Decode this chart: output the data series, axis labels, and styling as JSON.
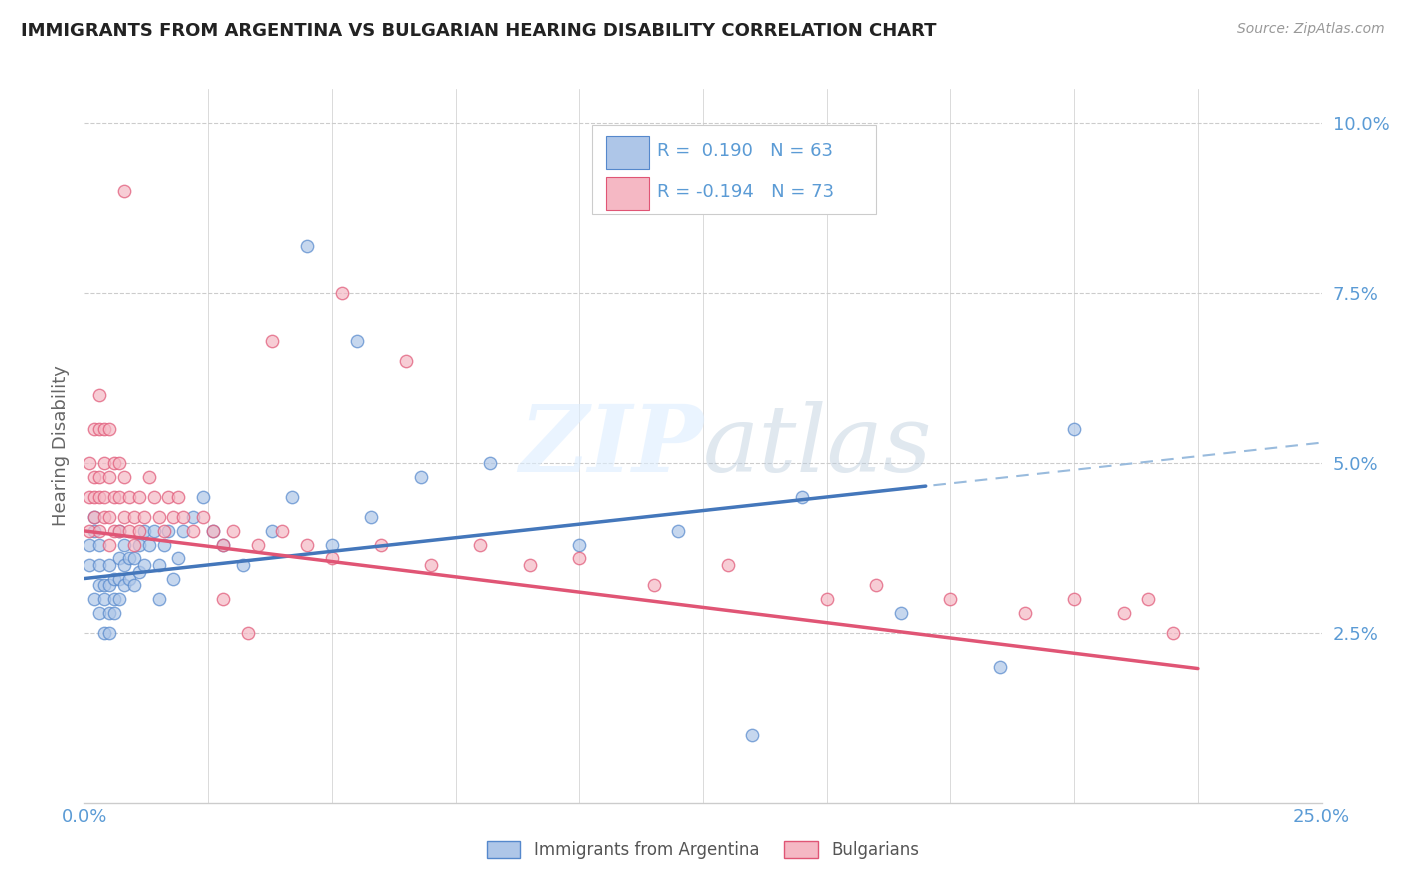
{
  "title": "IMMIGRANTS FROM ARGENTINA VS BULGARIAN HEARING DISABILITY CORRELATION CHART",
  "source": "Source: ZipAtlas.com",
  "ylabel": "Hearing Disability",
  "xlim": [
    0.0,
    0.25
  ],
  "ylim": [
    0.0,
    0.105
  ],
  "argentina_color": "#aec6e8",
  "argentina_edge": "#5588cc",
  "bulgaria_color": "#f5b8c4",
  "bulgaria_edge": "#e05575",
  "argentina_line_color": "#4477bb",
  "argentina_line_dash_color": "#99bbdd",
  "bulgaria_line_color": "#e05575",
  "argentina_R": 0.19,
  "argentina_N": 63,
  "bulgaria_R": -0.194,
  "bulgaria_N": 73,
  "background_color": "#ffffff",
  "grid_color": "#cccccc",
  "argentina_x": [
    0.001,
    0.001,
    0.002,
    0.002,
    0.002,
    0.003,
    0.003,
    0.003,
    0.003,
    0.004,
    0.004,
    0.004,
    0.005,
    0.005,
    0.005,
    0.005,
    0.006,
    0.006,
    0.006,
    0.007,
    0.007,
    0.007,
    0.007,
    0.008,
    0.008,
    0.008,
    0.009,
    0.009,
    0.01,
    0.01,
    0.011,
    0.011,
    0.012,
    0.012,
    0.013,
    0.014,
    0.015,
    0.015,
    0.016,
    0.017,
    0.018,
    0.019,
    0.02,
    0.022,
    0.024,
    0.026,
    0.028,
    0.032,
    0.038,
    0.042,
    0.05,
    0.058,
    0.068,
    0.082,
    0.1,
    0.12,
    0.145,
    0.165,
    0.185,
    0.2,
    0.045,
    0.055,
    0.135
  ],
  "argentina_y": [
    0.035,
    0.038,
    0.04,
    0.042,
    0.03,
    0.028,
    0.032,
    0.035,
    0.038,
    0.025,
    0.03,
    0.032,
    0.025,
    0.028,
    0.032,
    0.035,
    0.028,
    0.03,
    0.033,
    0.03,
    0.033,
    0.036,
    0.04,
    0.032,
    0.035,
    0.038,
    0.033,
    0.036,
    0.032,
    0.036,
    0.034,
    0.038,
    0.035,
    0.04,
    0.038,
    0.04,
    0.03,
    0.035,
    0.038,
    0.04,
    0.033,
    0.036,
    0.04,
    0.042,
    0.045,
    0.04,
    0.038,
    0.035,
    0.04,
    0.045,
    0.038,
    0.042,
    0.048,
    0.05,
    0.038,
    0.04,
    0.045,
    0.028,
    0.02,
    0.055,
    0.082,
    0.068,
    0.01
  ],
  "bulgaria_x": [
    0.001,
    0.001,
    0.001,
    0.002,
    0.002,
    0.002,
    0.002,
    0.003,
    0.003,
    0.003,
    0.003,
    0.003,
    0.004,
    0.004,
    0.004,
    0.004,
    0.005,
    0.005,
    0.005,
    0.005,
    0.006,
    0.006,
    0.006,
    0.007,
    0.007,
    0.007,
    0.008,
    0.008,
    0.009,
    0.009,
    0.01,
    0.01,
    0.011,
    0.011,
    0.012,
    0.013,
    0.014,
    0.015,
    0.016,
    0.017,
    0.018,
    0.019,
    0.02,
    0.022,
    0.024,
    0.026,
    0.028,
    0.03,
    0.035,
    0.04,
    0.045,
    0.05,
    0.06,
    0.07,
    0.08,
    0.09,
    0.1,
    0.115,
    0.13,
    0.15,
    0.16,
    0.175,
    0.19,
    0.2,
    0.21,
    0.215,
    0.22,
    0.038,
    0.052,
    0.065,
    0.028,
    0.033,
    0.008
  ],
  "bulgaria_y": [
    0.04,
    0.045,
    0.05,
    0.042,
    0.045,
    0.048,
    0.055,
    0.04,
    0.045,
    0.048,
    0.055,
    0.06,
    0.042,
    0.045,
    0.05,
    0.055,
    0.038,
    0.042,
    0.048,
    0.055,
    0.04,
    0.045,
    0.05,
    0.04,
    0.045,
    0.05,
    0.042,
    0.048,
    0.04,
    0.045,
    0.038,
    0.042,
    0.04,
    0.045,
    0.042,
    0.048,
    0.045,
    0.042,
    0.04,
    0.045,
    0.042,
    0.045,
    0.042,
    0.04,
    0.042,
    0.04,
    0.038,
    0.04,
    0.038,
    0.04,
    0.038,
    0.036,
    0.038,
    0.035,
    0.038,
    0.035,
    0.036,
    0.032,
    0.035,
    0.03,
    0.032,
    0.03,
    0.028,
    0.03,
    0.028,
    0.03,
    0.025,
    0.068,
    0.075,
    0.065,
    0.03,
    0.025,
    0.09
  ]
}
